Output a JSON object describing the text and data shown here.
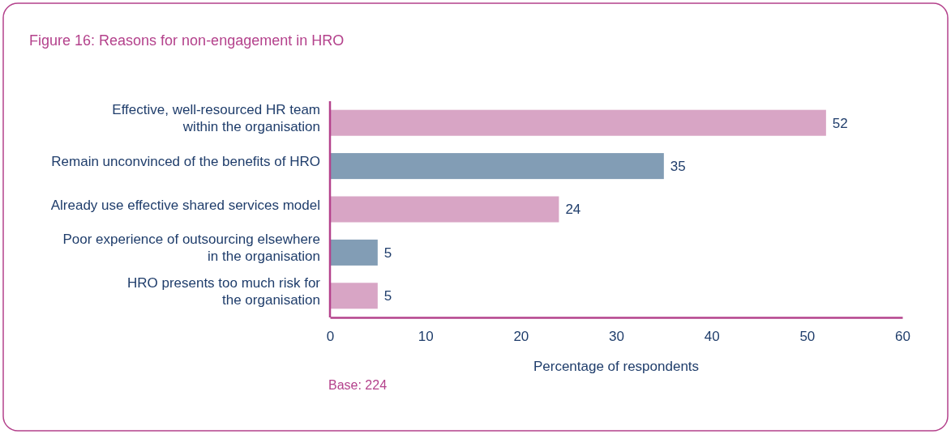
{
  "chart_data": {
    "type": "bar",
    "orientation": "horizontal",
    "title": "Figure 16: Reasons for non-engagement in HRO",
    "categories": [
      "Effective, well-resourced HR team\nwithin the organisation",
      "Remain unconvinced of the benefits of HRO",
      "Already use effective shared services model",
      "Poor experience of outsourcing elsewhere\nin the organisation",
      "HRO presents too much risk for\nthe organisation"
    ],
    "values": [
      52,
      35,
      24,
      5,
      5
    ],
    "colors": [
      "#d8a5c5",
      "#829db5",
      "#d8a5c5",
      "#829db5",
      "#d8a5c5"
    ],
    "xlim": [
      0,
      60
    ],
    "xticks": [
      0,
      10,
      20,
      30,
      40,
      50,
      60
    ],
    "xlabel": "Percentage of respondents",
    "annotations": [
      "Base: 224"
    ],
    "data_labels": true,
    "grid": false
  }
}
